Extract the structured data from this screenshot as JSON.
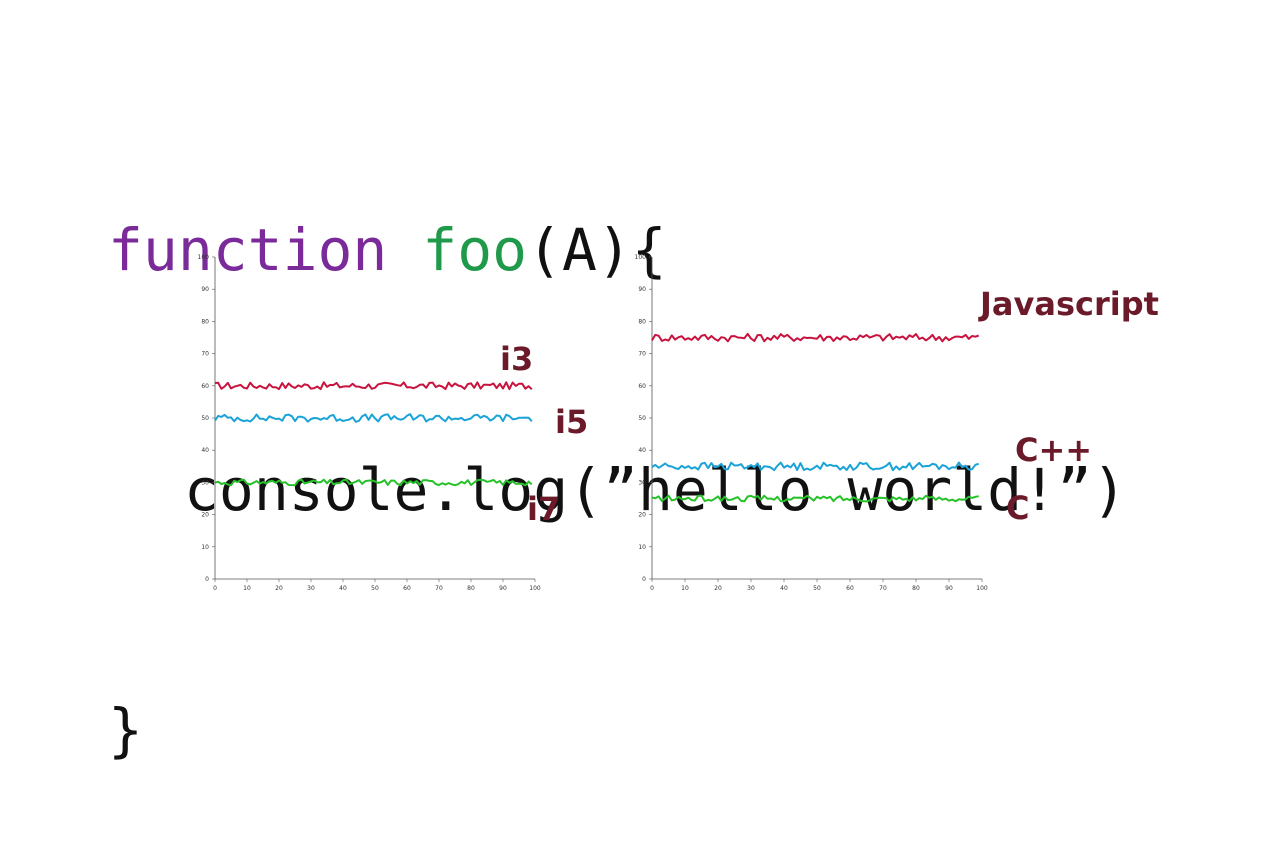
{
  "code": {
    "line1_keyword": "function",
    "line1_name": "foo",
    "line1_rest": "(A){",
    "line2": "console.log(”hello world!”)",
    "line3": "}"
  },
  "colors": {
    "keyword": "#7b2a9a",
    "function_name": "#1f9a4a",
    "label": "#6b1a2a"
  },
  "chart_data": [
    {
      "type": "line",
      "xlim": [
        0,
        100
      ],
      "ylim": [
        0,
        100
      ],
      "xticks": [
        0,
        10,
        20,
        30,
        40,
        50,
        60,
        70,
        80,
        90,
        100
      ],
      "yticks": [
        0,
        10,
        20,
        30,
        40,
        50,
        60,
        70,
        80,
        90,
        100
      ],
      "x_range": [
        0,
        99
      ],
      "series": [
        {
          "name": "i3",
          "mean": 60,
          "jitter": 1.1,
          "color": "#c8133f"
        },
        {
          "name": "i5",
          "mean": 50,
          "jitter": 1.2,
          "color": "#1ba3d8"
        },
        {
          "name": "i7",
          "mean": 30,
          "jitter": 0.9,
          "color": "#27c12a"
        }
      ]
    },
    {
      "type": "line",
      "xlim": [
        0,
        100
      ],
      "ylim": [
        0,
        100
      ],
      "xticks": [
        0,
        10,
        20,
        30,
        40,
        50,
        60,
        70,
        80,
        90,
        100
      ],
      "yticks": [
        0,
        10,
        20,
        30,
        40,
        50,
        60,
        70,
        80,
        90,
        100
      ],
      "x_range": [
        0,
        99
      ],
      "series": [
        {
          "name": "Javascript",
          "mean": 75,
          "jitter": 1.2,
          "color": "#c8133f"
        },
        {
          "name": "C++",
          "mean": 35,
          "jitter": 1.2,
          "color": "#1ba3d8"
        },
        {
          "name": "C",
          "mean": 25,
          "jitter": 0.9,
          "color": "#27c12a"
        }
      ]
    }
  ]
}
